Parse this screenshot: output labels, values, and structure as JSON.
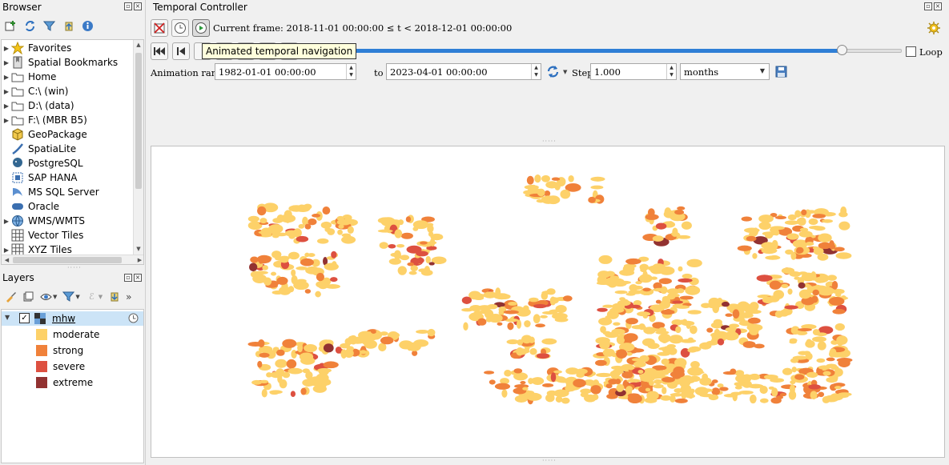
{
  "browser": {
    "title": "Browser",
    "items": [
      {
        "label": "Favorites",
        "icon": "star-icon",
        "expandable": true
      },
      {
        "label": "Spatial Bookmarks",
        "icon": "bookmarks-icon",
        "expandable": true
      },
      {
        "label": "Home",
        "icon": "folder-icon",
        "expandable": true
      },
      {
        "label": "C:\\ (win)",
        "icon": "folder-icon",
        "expandable": true
      },
      {
        "label": "D:\\ (data)",
        "icon": "folder-icon",
        "expandable": true
      },
      {
        "label": "F:\\ (MBR B5)",
        "icon": "folder-icon",
        "expandable": true
      },
      {
        "label": "GeoPackage",
        "icon": "geopackage-icon",
        "expandable": false
      },
      {
        "label": "SpatiaLite",
        "icon": "spatialite-icon",
        "expandable": false
      },
      {
        "label": "PostgreSQL",
        "icon": "postgresql-icon",
        "expandable": false
      },
      {
        "label": "SAP HANA",
        "icon": "sap-hana-icon",
        "expandable": false
      },
      {
        "label": "MS SQL Server",
        "icon": "mssql-icon",
        "expandable": false
      },
      {
        "label": "Oracle",
        "icon": "oracle-icon",
        "expandable": false
      },
      {
        "label": "WMS/WMTS",
        "icon": "globe-icon",
        "expandable": true
      },
      {
        "label": "Vector Tiles",
        "icon": "grid-icon",
        "expandable": false
      },
      {
        "label": "XYZ Tiles",
        "icon": "grid-icon",
        "expandable": true
      }
    ]
  },
  "layers": {
    "title": "Layers",
    "layer_name": "mhw",
    "legend": [
      {
        "label": "moderate",
        "color": "#fdd169"
      },
      {
        "label": "strong",
        "color": "#f0813a"
      },
      {
        "label": "severe",
        "color": "#dd5040"
      },
      {
        "label": "extreme",
        "color": "#923231"
      }
    ]
  },
  "temporal": {
    "title": "Temporal Controller",
    "current_frame": "Current frame: 2018-11-01 00:00:00 ≤ t < 2018-12-01 00:00:00",
    "tooltip": "Animated temporal navigation",
    "loop_label": "Loop",
    "loop_checked": false,
    "slider_position": 0.9,
    "range_label": "Animation range",
    "range_start": "1982-01-01 00:00:00",
    "to_label": "to",
    "range_end": "2023-04-01 00:00:00",
    "step_label": "Step",
    "step_value": "1.000",
    "step_unit": "months"
  }
}
